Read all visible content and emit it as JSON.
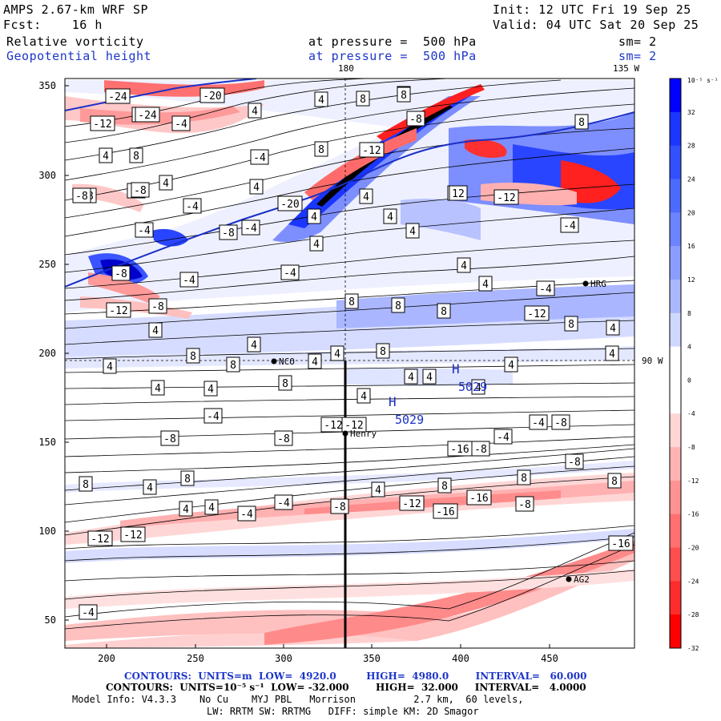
{
  "header": {
    "model": "AMPS 2.67-km WRF SP",
    "init": "Init: 12 UTC Fri 19 Sep 25",
    "fcst": "Fcst:    16 h",
    "valid": "Valid: 04 UTC Sat 20 Sep 25",
    "field1": "Relative vorticity",
    "field1_level": "at pressure =  500 hPa",
    "field1_sm": "sm= 2",
    "field2": "Geopotential height",
    "field2_level": "at pressure =  500 hPa",
    "field2_sm": "sm= 2"
  },
  "map": {
    "meridian_label_top": "180",
    "meridian_label_top2": "135 W",
    "parallel_label_right": "90 W",
    "x_ticks": [
      "200",
      "250",
      "300",
      "350",
      "400",
      "450"
    ],
    "y_ticks": [
      "350",
      "300",
      "250",
      "200",
      "150",
      "100",
      "50"
    ],
    "stations": [
      {
        "name": "HRG"
      },
      {
        "name": "NCO"
      },
      {
        "name": "Henry"
      },
      {
        "name": "AG2"
      }
    ],
    "highs": [
      {
        "symbol": "H",
        "value": "5029"
      },
      {
        "symbol": "H",
        "value": "5029"
      }
    ],
    "contour_labels": [
      "-24",
      "-24",
      "-20",
      "-24",
      "-4",
      "4",
      "8",
      "8",
      "4",
      "-8",
      "-12",
      "-8",
      "-12",
      "-8",
      "4",
      "8",
      "8",
      "-8",
      "4",
      "-8",
      "-4",
      "-4",
      "-8",
      "-20",
      "4",
      "12",
      "-12",
      "-4",
      "4",
      "-4",
      "8",
      "4",
      "4",
      "4",
      "-4",
      "-4",
      "8",
      "8",
      "-8",
      "-4",
      "-8",
      "-12",
      "-8",
      "8",
      "-12",
      "4",
      "4",
      "12",
      "8",
      "4",
      "8",
      "4",
      "-4",
      "8",
      "4",
      "8",
      "8",
      "4",
      "4",
      "4",
      "4",
      "4",
      "4",
      "8",
      "4",
      "4",
      "4",
      "4",
      "4",
      "4",
      "-4",
      "-8",
      "-8",
      "-12",
      "-12",
      "-16",
      "-8",
      "-4",
      "-4",
      "-8",
      "-8",
      "-4",
      "4",
      "8",
      "8",
      "8",
      "8",
      "8",
      "4",
      "4",
      "4",
      "-4",
      "-4",
      "-8",
      "-12",
      "-16",
      "-16",
      "-8",
      "-12",
      "-12",
      "-16",
      "-8",
      "4"
    ],
    "colors": {
      "positive": "#1a2fff",
      "negative": "#ff1a1a",
      "height_contour": "#1a2fc8"
    }
  },
  "colorbar": {
    "unit_label": "10⁻⁵ s⁻¹",
    "labels": [
      "32",
      "28",
      "24",
      "20",
      "16",
      "12",
      "8",
      "4",
      "0",
      "-4",
      "-8",
      "-12",
      "-16",
      "-20",
      "-24",
      "-28",
      "-32"
    ],
    "colors": [
      "#0000ff",
      "#1a36ff",
      "#3350ff",
      "#4d6aff",
      "#6b84ff",
      "#8b9eff",
      "#aab8ff",
      "#cfd8ff",
      "#ffffff",
      "#ffffff",
      "#ffd6d6",
      "#ffb4b4",
      "#ff9292",
      "#ff7070",
      "#ff4e4e",
      "#ff2c2c",
      "#ff0000"
    ]
  },
  "footer": {
    "line1": "CONTOURS:  UNITS=m  LOW=  4920.0         HIGH=  4980.0        INTERVAL=   60.000",
    "line2": "CONTOURS:  UNITS=10⁻⁵ s⁻¹  LOW= -32.000        HIGH=  32.000     INTERVAL=   4.0000",
    "line3": "Model Info: V4.3.3    No Cu    MYJ PBL   Morrison          2.7 km,  60 levels,",
    "line4": "LW: RRTM SW: RRTMG   DIFF: simple KM: 2D Smagor"
  }
}
